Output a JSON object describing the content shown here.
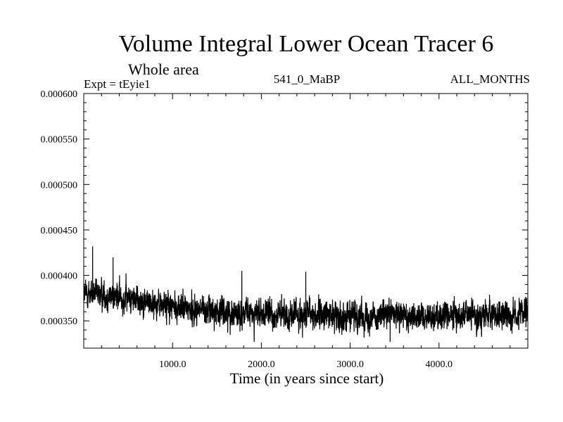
{
  "chart_data": {
    "type": "line",
    "title": "Volume Integral Lower Ocean Tracer 6",
    "subtitle": "Whole area",
    "experiment_label": "Expt = tEyie1",
    "period_label": "541_0_MaBP",
    "months_label": "ALL_MONTHS",
    "xlabel": "Time (in years since start)",
    "ylabel": "",
    "xlim": [
      0,
      5000
    ],
    "ylim": [
      0.00032,
      0.0006
    ],
    "x_ticks": [
      1000,
      2000,
      3000,
      4000
    ],
    "x_tick_labels": [
      "1000.0",
      "2000.0",
      "3000.0",
      "4000.0"
    ],
    "y_ticks": [
      0.0006,
      0.00055,
      0.0005,
      0.00045,
      0.0004,
      0.00035
    ],
    "y_tick_labels": [
      "0.000600",
      "0.000550",
      "0.000500",
      "0.000450",
      "0.000400",
      "0.000350"
    ],
    "grid": false,
    "series": [
      {
        "name": "Lower Ocean Tracer 6",
        "color": "#000000",
        "n_points": 5000,
        "trend": [
          {
            "x": 0,
            "y": 0.00038
          },
          {
            "x": 500,
            "y": 0.000375
          },
          {
            "x": 1000,
            "y": 0.000365
          },
          {
            "x": 1500,
            "y": 0.00036
          },
          {
            "x": 2000,
            "y": 0.000357
          },
          {
            "x": 3000,
            "y": 0.000356
          },
          {
            "x": 4000,
            "y": 0.000356
          },
          {
            "x": 5000,
            "y": 0.000357
          }
        ],
        "noise_amplitude": 1.4e-05,
        "notable_points": [
          {
            "x": 100,
            "y": 0.000432
          },
          {
            "x": 330,
            "y": 0.00042
          },
          {
            "x": 1780,
            "y": 0.000405
          },
          {
            "x": 2500,
            "y": 0.000404
          },
          {
            "x": 3450,
            "y": 0.000327
          }
        ]
      }
    ]
  }
}
